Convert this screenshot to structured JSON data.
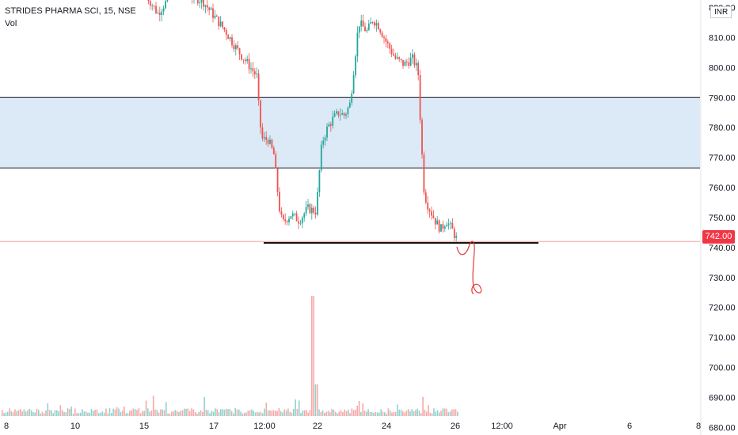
{
  "header": {
    "title": "STRIDES PHARMA SCI, 15, NSE",
    "volume_label": "Vol"
  },
  "currency": "INR",
  "current_price_label": "742.00",
  "colors": {
    "up": "#26a69a",
    "down": "#ef5350",
    "zone_fill": "#dce9f6",
    "zone_line": "#131722",
    "current_line": "#f7a5a8",
    "annotation": "#e53935"
  },
  "chart_data": {
    "type": "candlestick",
    "y_axis": {
      "ticks": [
        "820.00",
        "810.00",
        "800.00",
        "790.00",
        "780.00",
        "770.00",
        "760.00",
        "750.00",
        "740.00",
        "730.00",
        "720.00",
        "710.00",
        "700.00",
        "690.00",
        "680.00"
      ],
      "range": [
        678.0,
        822.5
      ]
    },
    "x_axis": {
      "ticks": [
        "8",
        "10",
        "15",
        "17",
        "12:00",
        "22",
        "24",
        "26",
        "12:00",
        "Apr",
        "6",
        "8"
      ]
    },
    "zone": {
      "top": 790.0,
      "bottom": 766.5
    },
    "support_level": 741.5,
    "current_price": 742.0,
    "price_path": [
      [
        0.0,
        824
      ],
      [
        0.4,
        818
      ],
      [
        1.0,
        826
      ],
      [
        1.6,
        824
      ],
      [
        2.0,
        822
      ],
      [
        2.4,
        817
      ],
      [
        2.8,
        812
      ],
      [
        3.2,
        806
      ],
      [
        3.6,
        801
      ],
      [
        3.9,
        797
      ],
      [
        4.0,
        782
      ],
      [
        4.1,
        776
      ],
      [
        4.3,
        776
      ],
      [
        4.5,
        771
      ],
      [
        4.7,
        753
      ],
      [
        4.8,
        748
      ],
      [
        5.1,
        751
      ],
      [
        5.4,
        749
      ],
      [
        5.7,
        753
      ],
      [
        6.0,
        752
      ],
      [
        6.1,
        764
      ],
      [
        6.2,
        775
      ],
      [
        6.4,
        780
      ],
      [
        6.6,
        783
      ],
      [
        6.8,
        785
      ],
      [
        7.0,
        784
      ],
      [
        7.2,
        788
      ],
      [
        7.3,
        797
      ],
      [
        7.5,
        815
      ],
      [
        7.8,
        812
      ],
      [
        8.0,
        816
      ],
      [
        8.2,
        814
      ],
      [
        8.5,
        808
      ],
      [
        8.8,
        803
      ],
      [
        9.1,
        801
      ],
      [
        9.4,
        803
      ],
      [
        9.6,
        799
      ],
      [
        9.7,
        778
      ],
      [
        9.8,
        760
      ],
      [
        9.9,
        755
      ],
      [
        10.2,
        749
      ],
      [
        10.4,
        746
      ],
      [
        10.6,
        749
      ],
      [
        10.8,
        746
      ],
      [
        11.0,
        742
      ]
    ],
    "volume": {
      "description": "volume histogram; one notable spike near 22",
      "spike_value": 1.0,
      "typical_value": 0.08
    },
    "annotation": "hand-drawn arrow projecting price downward toward ~721"
  }
}
